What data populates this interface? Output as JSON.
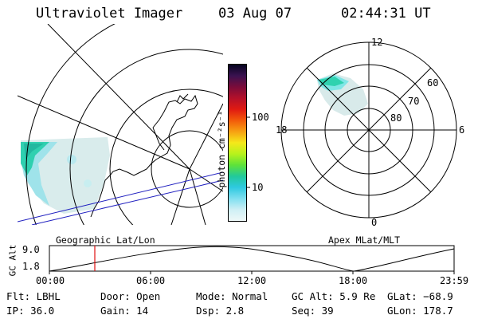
{
  "header": {
    "instrument": "Ultraviolet Imager",
    "date": "03 Aug 07",
    "time": "02:44:31 UT"
  },
  "colorbar": {
    "label": "photon cm⁻²s⁻¹",
    "ticks": [
      "100",
      "10"
    ],
    "colors": [
      "#050520",
      "#3a1250",
      "#7a0c3a",
      "#b3102a",
      "#e01a12",
      "#f25a0a",
      "#f7a012",
      "#f5e81a",
      "#b7f21c",
      "#5ee23a",
      "#22c99a",
      "#2ec9e0",
      "#7fdff0",
      "#cfeff5",
      "#eef8f8"
    ]
  },
  "left_map": {
    "label": "Geographic Lat/Lon"
  },
  "right_map": {
    "label": "Apex MLat/MLT",
    "mlt_labels": {
      "top": "12",
      "left": "18",
      "right": "6",
      "bottom": "0"
    },
    "lat_labels": [
      "60",
      "70",
      "80"
    ]
  },
  "altitude_plot": {
    "axis_label": "GC Alt",
    "y_ticks": [
      "9.0",
      "1.8"
    ],
    "x_ticks": [
      "00:00",
      "06:00",
      "12:00",
      "18:00",
      "23:59"
    ],
    "current_time_marker": "02:44:31",
    "marker_color": "#e01010"
  },
  "status": {
    "filter": "Flt: LBHL",
    "ip": "IP: 36.0",
    "door": "Door: Open",
    "gain": "Gain: 14",
    "mode": "Mode: Normal",
    "dsp": "Dsp:    2.8",
    "gc_alt": "GC Alt: 5.9 Re",
    "seq": "Seq: 39",
    "glat": "GLat: −68.9",
    "glon": "GLon: 178.7"
  }
}
